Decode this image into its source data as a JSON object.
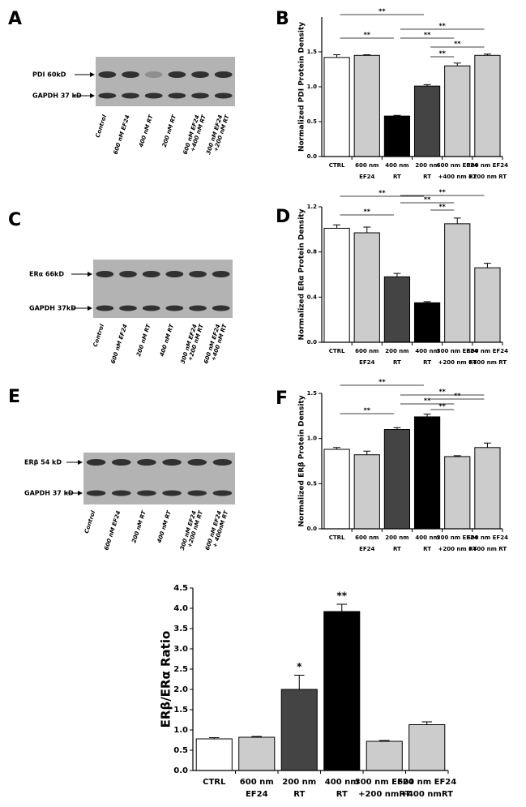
{
  "panels": [
    "A",
    "B",
    "C",
    "D",
    "E",
    "F"
  ],
  "blots": [
    {
      "band_labels": [
        "PDI 60kD",
        "GAPDH 37 kD"
      ],
      "lanes": [
        [
          "Control"
        ],
        [
          "600 nM EF24"
        ],
        [
          "400 nM RT"
        ],
        [
          "200 nM RT"
        ],
        [
          "600 nM EF24",
          "+400 nM RT"
        ],
        [
          "300 nM EF24",
          "+200 nM RT"
        ]
      ]
    },
    {
      "band_labels": [
        "ERα 66kD",
        "GAPDH 37kD"
      ],
      "lanes": [
        [
          "Control"
        ],
        [
          "600 nM EF24"
        ],
        [
          "200 nM RT"
        ],
        [
          "400 nM RT"
        ],
        [
          "300 nM EF24",
          "+200 nM RT"
        ],
        [
          "600 nM EF24",
          "+400 nM RT"
        ]
      ]
    },
    {
      "band_labels": [
        "ERβ 54 kD",
        "GAPDH 37 kD"
      ],
      "lanes": [
        [
          "Control"
        ],
        [
          "600 nM EF24"
        ],
        [
          "200 nM RT"
        ],
        [
          "400 nM RT"
        ],
        [
          "300 nM EF24",
          "+200 nM RT"
        ],
        [
          "600 nM EF24",
          "+ 400nM RT"
        ]
      ]
    }
  ],
  "chart_data": [
    {
      "type": "bar",
      "y_label": "Normalized PDI Protein Density",
      "categories": [
        [
          "CTRL"
        ],
        [
          "600 nm",
          "EF24"
        ],
        [
          "400 nm",
          "RT"
        ],
        [
          "200 nm",
          "RT"
        ],
        [
          "600 nm EF24",
          "+400 nm RT"
        ],
        [
          "300 nm EF24",
          "+200 nm RT"
        ]
      ],
      "values": [
        1.42,
        1.45,
        0.58,
        1.01,
        1.3,
        1.45
      ],
      "errors": [
        0.04,
        0.01,
        0.01,
        0.02,
        0.04,
        0.02
      ],
      "colors": [
        "#ffffff",
        "#cccccc",
        "#000000",
        "#444444",
        "#cccccc",
        "#cccccc"
      ],
      "ylim": [
        0,
        2
      ],
      "yticks": [
        {
          "value": 0,
          "label": "0.0"
        },
        0.5,
        {
          "value": 1,
          "label": "1.0"
        },
        1.5
      ],
      "annotations": [
        "**",
        "**",
        "**",
        "**",
        "**",
        "**"
      ]
    },
    {
      "type": "bar",
      "y_label": "Normalized ERα Protein Density",
      "categories": [
        [
          "CTRL"
        ],
        [
          "600 nm",
          "EF24"
        ],
        [
          "200 nm",
          "RT"
        ],
        [
          "400 nm",
          "RT"
        ],
        [
          "300 nm EF24",
          "+200 nm RT"
        ],
        [
          "600 nm EF24",
          "+400 nm RT"
        ]
      ],
      "values": [
        1.01,
        0.97,
        0.58,
        0.35,
        1.05,
        0.66
      ],
      "errors": [
        0.03,
        0.05,
        0.03,
        0.01,
        0.05,
        0.04
      ],
      "colors": [
        "#ffffff",
        "#cccccc",
        "#444444",
        "#000000",
        "#cccccc",
        "#cccccc"
      ],
      "ylim": [
        0,
        1.2
      ],
      "yticks": [
        {
          "value": 0,
          "label": "0.0"
        },
        0.4,
        0.8,
        1.2
      ],
      "annotations": [
        "**",
        "**",
        "**",
        "**",
        "**"
      ]
    },
    {
      "type": "bar",
      "y_label": "Normalized ERβ Protein Density",
      "categories": [
        [
          "CTRL"
        ],
        [
          "600 nm",
          "EF24"
        ],
        [
          "200 nm",
          "RT"
        ],
        [
          "400 nm",
          "RT"
        ],
        [
          "300 nm EF24",
          "+200 nm RT"
        ],
        [
          "600 nm EF24",
          "+400 nm RT"
        ]
      ],
      "values": [
        0.88,
        0.82,
        1.1,
        1.24,
        0.8,
        0.9
      ],
      "errors": [
        0.02,
        0.04,
        0.02,
        0.03,
        0.01,
        0.05
      ],
      "colors": [
        "#ffffff",
        "#cccccc",
        "#444444",
        "#000000",
        "#cccccc",
        "#cccccc"
      ],
      "ylim": [
        0,
        1.5
      ],
      "yticks": [
        {
          "value": 0,
          "label": "0.0"
        },
        0.5,
        {
          "value": 1,
          "label": "1.0"
        },
        1.5
      ],
      "annotations": [
        "**",
        "**",
        "**",
        "**",
        "**",
        "**"
      ]
    },
    {
      "type": "bar",
      "y_label": "ERβ/ERα Ratio",
      "categories": [
        [
          "CTRL"
        ],
        [
          "600 nm",
          "EF24"
        ],
        [
          "200 nm",
          "RT"
        ],
        [
          "400 nm",
          "RT"
        ],
        [
          "300 nm EF24",
          "+200 nmRT"
        ],
        [
          "600 nm EF24",
          "+400 nmRT"
        ]
      ],
      "values": [
        0.78,
        0.82,
        2.0,
        3.92,
        0.72,
        1.13
      ],
      "errors": [
        0.03,
        0.02,
        0.35,
        0.18,
        0.02,
        0.07
      ],
      "colors": [
        "#ffffff",
        "#cccccc",
        "#444444",
        "#000000",
        "#cccccc",
        "#cccccc"
      ],
      "ylim": [
        0,
        4.5
      ],
      "yticks": [
        {
          "value": 0,
          "label": "0.0"
        },
        0.5,
        {
          "value": 1,
          "label": "1.0"
        },
        1.5,
        {
          "value": 2,
          "label": "2.0"
        },
        2.5,
        {
          "value": 3,
          "label": "3.0"
        },
        3.5,
        {
          "value": 4,
          "label": "4.0"
        },
        4.5
      ],
      "annotations": [
        "*",
        "**"
      ]
    }
  ]
}
